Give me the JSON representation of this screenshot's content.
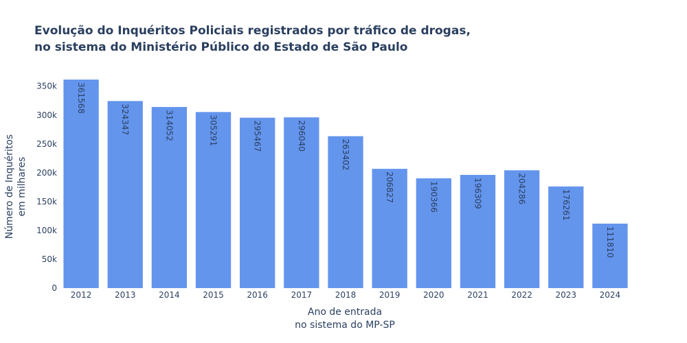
{
  "chart_data": {
    "type": "bar",
    "title_lines": [
      "Evolução do Inquéritos Policiais registrados por tráfico de drogas,",
      "no sistema do Ministério Público do Estado de São Paulo"
    ],
    "categories": [
      "2012",
      "2013",
      "2014",
      "2015",
      "2016",
      "2017",
      "2018",
      "2019",
      "2020",
      "2021",
      "2022",
      "2023",
      "2024"
    ],
    "values": [
      361568,
      324347,
      314052,
      305291,
      295467,
      296040,
      263402,
      206827,
      190366,
      196309,
      204286,
      176261,
      111810
    ],
    "data_labels": [
      "361568",
      "324347",
      "314052",
      "305291",
      "295467",
      "296040",
      "263402",
      "206827",
      "190366",
      "196309",
      "204286",
      "176261",
      "111810"
    ],
    "xlabel_lines": [
      "Ano de entrada",
      "no sistema do MP-SP"
    ],
    "ylabel_lines": [
      "Número de Inquéritos",
      "em milhares"
    ],
    "y_ticks": [
      0,
      50000,
      100000,
      150000,
      200000,
      250000,
      300000,
      350000
    ],
    "y_tick_labels": [
      "0",
      "50k",
      "100k",
      "150k",
      "200k",
      "250k",
      "300k",
      "350k"
    ],
    "ylim": [
      0,
      380598
    ],
    "grid": false,
    "colors": {
      "bar": "#6495ed",
      "text": "#2a3f5f"
    }
  }
}
